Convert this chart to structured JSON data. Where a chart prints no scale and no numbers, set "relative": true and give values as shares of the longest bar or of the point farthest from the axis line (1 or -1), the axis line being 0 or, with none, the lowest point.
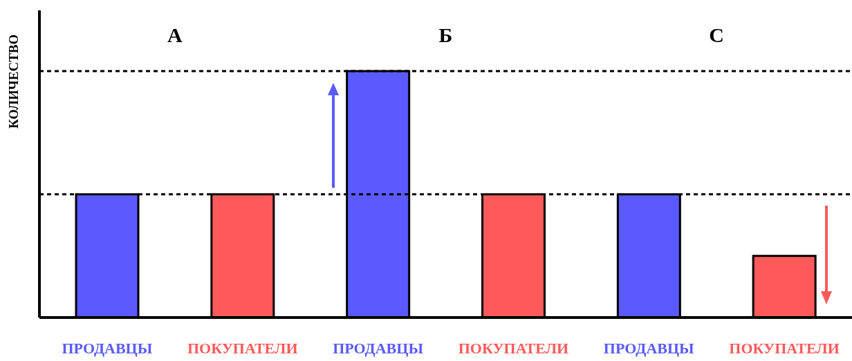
{
  "chart_data": {
    "type": "bar",
    "relative": true,
    "ylabel": "КОЛИЧЕСТВО",
    "categories": [
      "ПРОДАВЦЫ",
      "ПОКУПАТЕЛИ",
      "ПРОДАВЦЫ",
      "ПОКУПАТЕЛИ",
      "ПРОДАВЦЫ",
      "ПОКУПАТЕЛИ"
    ],
    "values": [
      0.5,
      0.5,
      1,
      0.5,
      0.5,
      0.25
    ],
    "colors": [
      "#5a5aff",
      "#ff5a5a",
      "#5a5aff",
      "#ff5a5a",
      "#5a5aff",
      "#ff5a5a"
    ],
    "annotations": [
      "А",
      "Б",
      "С"
    ],
    "ref_lines": [
      {
        "axis": "y",
        "value": 1,
        "color": "#000000",
        "line_style": "dashed"
      },
      {
        "axis": "y",
        "value": 0.5,
        "color": "#000000",
        "line_style": "dashed"
      }
    ]
  }
}
